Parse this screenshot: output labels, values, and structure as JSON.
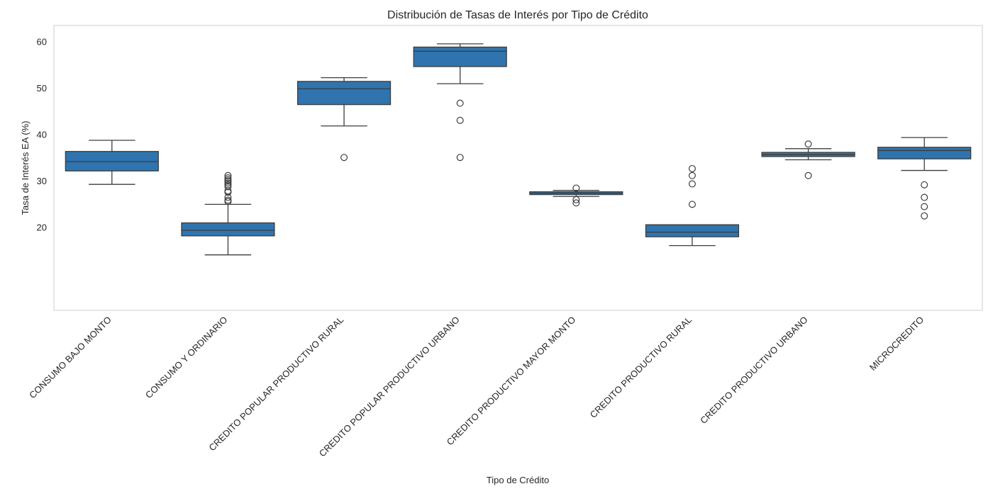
{
  "chart_data": {
    "type": "box",
    "title": "Distribución de Tasas de Interés por Tipo de Crédito",
    "xlabel": "Tipo de Crédito",
    "ylabel": "Tasa de Interés EA (%)",
    "ylim": [
      12,
      62
    ],
    "yticks": [
      20,
      30,
      40,
      50,
      60
    ],
    "grid": false,
    "box_color": "#2f74ae",
    "line_color": "#3d3d3d",
    "categories": [
      "CONSUMO BAJO MONTO",
      "CONSUMO Y ORDINARIO",
      "CREDITO POPULAR PRODUCTIVO RURAL",
      "CREDITO POPULAR PRODUCTIVO URBANO",
      "CREDITO PRODUCTIVO MAYOR MONTO",
      "CREDITO PRODUCTIVO RURAL",
      "CREDITO PRODUCTIVO URBANO",
      "MICROCREDITO"
    ],
    "boxes": [
      {
        "whisker_low": 29.3,
        "q1": 32.2,
        "median": 34.2,
        "q3": 36.4,
        "whisker_high": 38.8,
        "outliers": []
      },
      {
        "whisker_low": 14.1,
        "q1": 18.2,
        "median": 19.4,
        "q3": 21.0,
        "whisker_high": 25.0,
        "outliers": [
          25.6,
          25.9,
          26.5,
          27.6,
          27.9,
          28.8,
          29.2,
          29.6,
          30.0,
          30.3,
          30.7,
          31.2
        ]
      },
      {
        "whisker_low": 41.9,
        "q1": 46.5,
        "median": 49.9,
        "q3": 51.5,
        "whisker_high": 52.3,
        "outliers": [
          35.1
        ]
      },
      {
        "whisker_low": 51.0,
        "q1": 54.7,
        "median": 58.0,
        "q3": 58.9,
        "whisker_high": 59.6,
        "outliers": [
          46.8,
          43.1,
          35.1
        ]
      },
      {
        "whisker_low": 26.7,
        "q1": 27.1,
        "median": 27.4,
        "q3": 27.7,
        "whisker_high": 28.0,
        "outliers": [
          28.5,
          26.0,
          25.3
        ]
      },
      {
        "whisker_low": 16.1,
        "q1": 18.0,
        "median": 19.0,
        "q3": 20.6,
        "whisker_high": 20.6,
        "outliers": [
          32.7,
          31.2,
          29.4,
          25.0
        ]
      },
      {
        "whisker_low": 34.6,
        "q1": 35.3,
        "median": 35.7,
        "q3": 36.2,
        "whisker_high": 37.0,
        "outliers": [
          38.0,
          31.2
        ]
      },
      {
        "whisker_low": 32.3,
        "q1": 34.8,
        "median": 36.6,
        "q3": 37.3,
        "whisker_high": 39.4,
        "outliers": [
          29.2,
          26.5,
          24.5,
          22.5
        ]
      }
    ]
  }
}
